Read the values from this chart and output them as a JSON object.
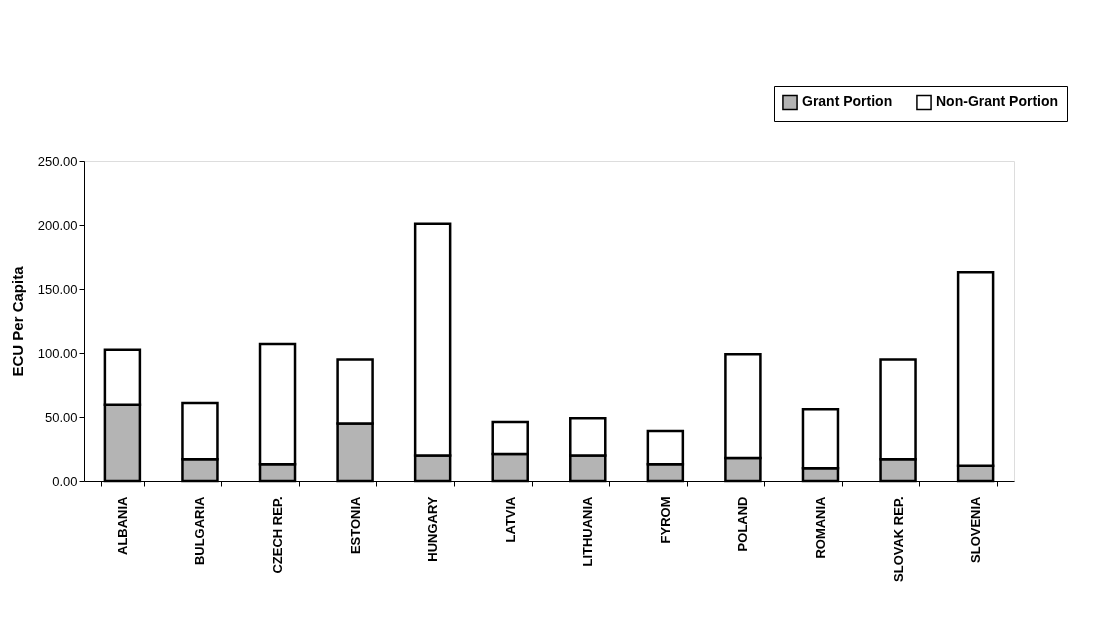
{
  "chart_data": {
    "type": "bar",
    "ylabel": "ECU Per Capita",
    "stacked": true,
    "legend": "top right",
    "grid": false,
    "categories": [
      "ALBANIA",
      "BULGARIA",
      "CZECH REP.",
      "ESTONIA",
      "HUNGARY",
      "LATVIA",
      "LITHUANIA",
      "FYROM",
      "POLAND",
      "ROMANIA",
      "SLOVAK REP.",
      "SLOVENIA"
    ],
    "series": [
      {
        "name": "Grant Portion",
        "color": "#b4b4b4",
        "values": [
          59.5,
          17,
          13,
          45,
          20,
          21,
          20,
          13,
          18,
          10,
          17,
          12
        ]
      },
      {
        "name": "Non-Grant Portion",
        "color": "#ffffff",
        "values": [
          43,
          44,
          94,
          50,
          181,
          25,
          29,
          26,
          81,
          46,
          78,
          151
        ]
      }
    ],
    "ylim": [
      0,
      250
    ],
    "yticks": [
      {
        "value": 0,
        "label": "0.00"
      },
      {
        "value": 50,
        "label": "50.00"
      },
      {
        "value": 100,
        "label": "100.00"
      },
      {
        "value": 150,
        "label": "150.00"
      },
      {
        "value": 200,
        "label": "200.00"
      },
      {
        "value": 250,
        "label": "250.00"
      }
    ]
  }
}
